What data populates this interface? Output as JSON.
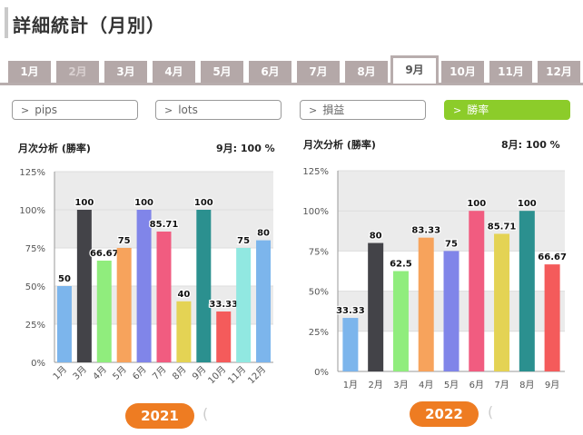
{
  "page_title": "詳細統計（月別）",
  "month_tabs": [
    {
      "label": "1月",
      "state": "normal"
    },
    {
      "label": "2月",
      "state": "disabled"
    },
    {
      "label": "3月",
      "state": "normal"
    },
    {
      "label": "4月",
      "state": "normal"
    },
    {
      "label": "5月",
      "state": "normal"
    },
    {
      "label": "6月",
      "state": "normal"
    },
    {
      "label": "7月",
      "state": "normal"
    },
    {
      "label": "8月",
      "state": "normal"
    },
    {
      "label": "9月",
      "state": "active"
    },
    {
      "label": "10月",
      "state": "normal"
    },
    {
      "label": "11月",
      "state": "normal"
    },
    {
      "label": "12月",
      "state": "normal"
    }
  ],
  "filters": [
    {
      "label": "pips",
      "active": false
    },
    {
      "label": "lots",
      "active": false
    },
    {
      "label": "損益",
      "active": false
    },
    {
      "label": "勝率",
      "active": true
    }
  ],
  "colors": {
    "accent": "#8ccc2a",
    "year_button": "#ee7c22",
    "tab": "#b4a8a8"
  },
  "charts": [
    {
      "heading": "月次分析 (勝率)",
      "summary": "9月:  100 %",
      "year_label": "2021"
    },
    {
      "heading": "月次分析 (勝率)",
      "summary": "8月:  100 %",
      "year_label": "2022"
    }
  ],
  "chart_data": [
    {
      "type": "bar",
      "categories": [
        "1月",
        "3月",
        "4月",
        "5月",
        "6月",
        "7月",
        "8月",
        "9月",
        "10月",
        "11月",
        "12月"
      ],
      "values": [
        50,
        100,
        66.67,
        75,
        100,
        85.71,
        40,
        100,
        33.33,
        75,
        80
      ],
      "value_labels": [
        "50",
        "100",
        "66.67",
        "75",
        "100",
        "85.71",
        "40",
        "100",
        "33.33",
        "75",
        "80"
      ],
      "bar_colors": [
        "#7cb5ec",
        "#434348",
        "#90ed7d",
        "#f7a35c",
        "#8085e9",
        "#f15c80",
        "#e4d354",
        "#2b908f",
        "#f45b5b",
        "#91e8e1",
        "#7cb5ec"
      ],
      "yticks": [
        "0%",
        "25%",
        "50%",
        "75%",
        "100%",
        "125%"
      ],
      "ylim": [
        0,
        125
      ],
      "grid": true
    },
    {
      "type": "bar",
      "categories": [
        "1月",
        "2月",
        "3月",
        "4月",
        "5月",
        "6月",
        "7月",
        "8月",
        "9月"
      ],
      "values": [
        33.33,
        80,
        62.5,
        83.33,
        75,
        100,
        85.71,
        100,
        66.67
      ],
      "value_labels": [
        "33.33",
        "80",
        "62.5",
        "83.33",
        "75",
        "100",
        "85.71",
        "100",
        "66.67"
      ],
      "bar_colors": [
        "#7cb5ec",
        "#434348",
        "#90ed7d",
        "#f7a35c",
        "#8085e9",
        "#f15c80",
        "#e4d354",
        "#2b908f",
        "#f45b5b"
      ],
      "yticks": [
        "0%",
        "25%",
        "50%",
        "75%",
        "100%",
        "125%"
      ],
      "ylim": [
        0,
        125
      ],
      "grid": true
    }
  ]
}
